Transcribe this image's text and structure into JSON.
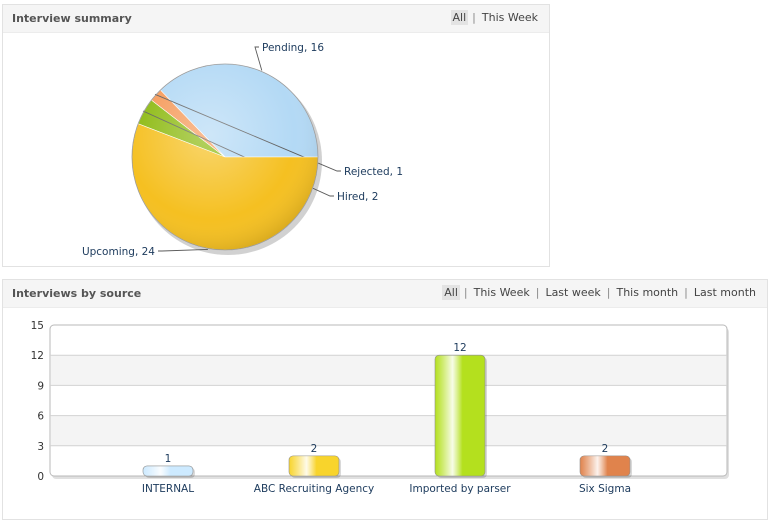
{
  "summary_panel": {
    "title": "Interview summary",
    "filters": [
      "All",
      "This Week"
    ],
    "active_filter": "All"
  },
  "source_panel": {
    "title": "Interviews by source",
    "filters": [
      "All",
      "This Week",
      "Last week",
      "This month",
      "Last month"
    ],
    "active_filter": "All"
  },
  "chart_data": [
    {
      "type": "pie",
      "slices": [
        {
          "label": "Pending",
          "value": 16,
          "color": "#b3d9f5"
        },
        {
          "label": "Rejected",
          "value": 1,
          "color": "#f59a5a"
        },
        {
          "label": "Hired",
          "value": 2,
          "color": "#8dba12"
        },
        {
          "label": "Upcoming",
          "value": 24,
          "color": "#f5c021"
        }
      ]
    },
    {
      "type": "bar",
      "categories": [
        "INTERNAL",
        "ABC Recruiting Agency",
        "Imported by parser",
        "Six Sigma"
      ],
      "values": [
        1,
        2,
        12,
        2
      ],
      "colors": [
        "#cdeaff",
        "#f8d42c",
        "#b4e01e",
        "#e0834c"
      ],
      "ylim": [
        0,
        15
      ],
      "yticks": [
        0,
        3,
        6,
        9,
        12,
        15
      ],
      "grid": true
    }
  ]
}
